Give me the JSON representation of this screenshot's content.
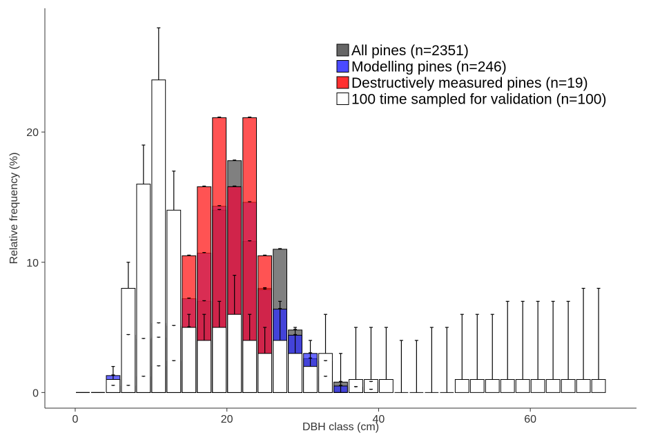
{
  "chart_data": {
    "type": "bar",
    "title": "",
    "xlabel": "DBH class (cm)",
    "ylabel": "Relative frequency (%)",
    "xlim": [
      -4,
      74
    ],
    "ylim": [
      -1.2,
      29.5
    ],
    "x_ticks": [
      0,
      20,
      40,
      60
    ],
    "y_ticks": [
      0,
      10,
      20
    ],
    "bar_width": 1.8,
    "grid": false,
    "legend_position": "top-right",
    "series": [
      {
        "name": "All pines (n=2351)",
        "color": "#555555",
        "opacity": 0.75,
        "x": [
          1,
          3,
          5,
          7,
          9,
          11,
          13,
          15,
          17,
          19,
          21,
          23,
          25,
          27,
          29,
          31,
          33,
          35,
          37,
          39
        ],
        "values": [
          0,
          0,
          0.5,
          0.5,
          1.2,
          2.0,
          2.4,
          5.0,
          7.0,
          14.0,
          17.8,
          11.6,
          8.0,
          11.0,
          4.8,
          2.6,
          2.4,
          0.8,
          0.4,
          0.8
        ],
        "error": [
          0,
          0,
          0.05,
          0.05,
          0.05,
          0.05,
          0.05,
          0.05,
          0.05,
          0.05,
          0.05,
          0.05,
          0.05,
          0.05,
          0.05,
          0.05,
          0.05,
          0.05,
          0.05,
          0.05
        ]
      },
      {
        "name": "Modelling pines (n=246)",
        "color": "#2a2aff",
        "opacity": 0.7,
        "x": [
          1,
          3,
          5,
          7,
          9,
          11,
          13,
          15,
          17,
          19,
          21,
          23,
          25,
          27,
          29,
          31,
          33,
          35,
          37,
          39
        ],
        "values": [
          0,
          0,
          1.3,
          4.4,
          4.1,
          4.2,
          5.1,
          7.2,
          10.7,
          14.3,
          15.8,
          14.6,
          7.9,
          6.4,
          4.4,
          3.0,
          1.2,
          0.5,
          0.4,
          0.2
        ],
        "error": [
          0,
          0,
          0.05,
          0.05,
          0.05,
          0.05,
          0.05,
          0.05,
          0.05,
          0.05,
          0.05,
          0.05,
          0.05,
          0.05,
          0.05,
          0.05,
          0.05,
          0.05,
          0.05,
          0.05
        ]
      },
      {
        "name": "Destructively measured pines (n=19)",
        "color": "#ff1a1a",
        "opacity": 0.75,
        "x": [
          11,
          15,
          17,
          19,
          21,
          23,
          25
        ],
        "values": [
          5.3,
          10.5,
          15.8,
          21.1,
          15.8,
          21.1,
          10.5
        ],
        "error": [
          0.05,
          0.05,
          0.05,
          0.05,
          0.05,
          0.05,
          0.05
        ]
      },
      {
        "name": "100 time sampled for validation (n=100)",
        "color": "#ffffff",
        "opacity": 1,
        "x": [
          1,
          3,
          5,
          7,
          9,
          11,
          13,
          15,
          17,
          19,
          21,
          23,
          25,
          27,
          29,
          31,
          33,
          35,
          37,
          39,
          41,
          43,
          45,
          47,
          49,
          51,
          53,
          55,
          57,
          59,
          61,
          63,
          65,
          67,
          69
        ],
        "values": [
          0,
          0,
          1,
          8,
          16,
          24,
          14,
          5,
          4,
          5,
          6,
          4,
          3,
          4,
          3,
          2,
          3,
          0,
          1,
          1,
          1,
          0,
          0,
          0,
          0,
          1,
          1,
          1,
          1,
          1,
          1,
          1,
          1,
          1,
          1
        ],
        "error": [
          0,
          0,
          1,
          2,
          3,
          4,
          3,
          1,
          2,
          2,
          3,
          2,
          2,
          3,
          2,
          2,
          3,
          3,
          4,
          4,
          4,
          4,
          4,
          5,
          5,
          5,
          5,
          5,
          6,
          6,
          6,
          6,
          6,
          7,
          7
        ]
      }
    ]
  }
}
